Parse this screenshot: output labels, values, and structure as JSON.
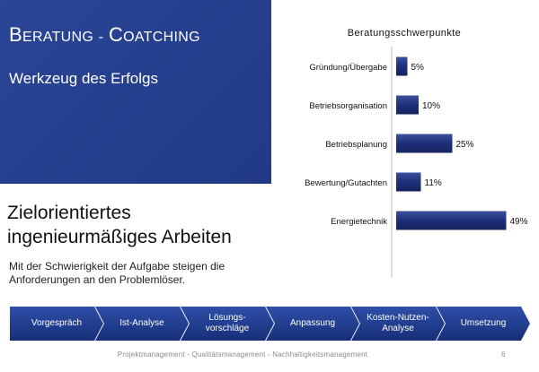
{
  "slide": {
    "title": "Beratung - Coatching",
    "subtitle": "Werkzeug des Erfolgs",
    "headline_line1": "Zielorientiertes",
    "headline_line2": "ingenieurmäßiges Arbeiten",
    "body": "Mit der Schwierigkeit der Aufgabe steigen die Anforderungen an den Problemlöser."
  },
  "chart_data": {
    "type": "bar",
    "orientation": "horizontal",
    "title": "Beratungsschwerpunkte",
    "categories": [
      "Gründung/Übergabe",
      "Betriebsorganisation",
      "Betriebsplanung",
      "Bewertung/Gutachten",
      "Energietechnik"
    ],
    "values": [
      5,
      10,
      25,
      11,
      49
    ],
    "value_labels": [
      "5%",
      "10%",
      "25%",
      "11%",
      "49%"
    ],
    "unit": "%",
    "xlim": [
      0,
      60
    ],
    "grid": false,
    "legend": "none",
    "bar_color": "#1e2f7a"
  },
  "process_steps": [
    "Vorgespräch",
    "Ist-Analyse",
    "Lösungs-\nvorschläge",
    "Anpassung",
    "Kosten-Nutzen-\nAnalyse",
    "Umsetzung"
  ],
  "footer": {
    "text": "Projektmanagement - Qualitätsmanagement - Nachhaltigkeitsmanagement",
    "page": "6"
  },
  "colors": {
    "hero_background": "#213a86",
    "process_arrow": "#1f3a8a"
  }
}
